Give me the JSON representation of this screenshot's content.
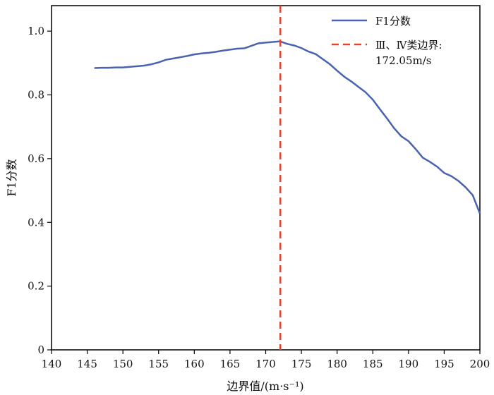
{
  "chart_data": {
    "type": "line",
    "xlabel": "边界值/(m·s⁻¹)",
    "ylabel": "F1分数",
    "xlim": [
      140,
      200
    ],
    "ylim": [
      0,
      1.08
    ],
    "xticks": [
      140,
      145,
      150,
      155,
      160,
      165,
      170,
      175,
      180,
      185,
      190,
      195,
      200
    ],
    "yticks": [
      0,
      0.2,
      0.4,
      0.6,
      0.8,
      1.0
    ],
    "xtick_labels": [
      "140",
      "145",
      "150",
      "155",
      "160",
      "165",
      "170",
      "175",
      "180",
      "185",
      "190",
      "195",
      "200"
    ],
    "ytick_labels": [
      "0",
      "0.2",
      "0.4",
      "0.6",
      "0.8",
      "1.0"
    ],
    "grid": false,
    "legend_position": "top-right",
    "series": [
      {
        "name": "F1分数",
        "color": "#4a63b0",
        "x": [
          146,
          147,
          148,
          149,
          150,
          151,
          152,
          153,
          154,
          155,
          156,
          157,
          158,
          159,
          160,
          161,
          162,
          163,
          164,
          165,
          166,
          167,
          168,
          169,
          170,
          171,
          172,
          173,
          174,
          175,
          176,
          177,
          178,
          179,
          180,
          181,
          182,
          183,
          184,
          185,
          186,
          187,
          188,
          189,
          190,
          191,
          192,
          193,
          194,
          195,
          196,
          197,
          198,
          199,
          200
        ],
        "y": [
          0.884,
          0.885,
          0.885,
          0.886,
          0.886,
          0.888,
          0.89,
          0.892,
          0.896,
          0.902,
          0.91,
          0.914,
          0.918,
          0.922,
          0.927,
          0.93,
          0.932,
          0.935,
          0.939,
          0.942,
          0.945,
          0.946,
          0.954,
          0.962,
          0.964,
          0.966,
          0.968,
          0.96,
          0.955,
          0.947,
          0.936,
          0.928,
          0.912,
          0.896,
          0.876,
          0.857,
          0.842,
          0.825,
          0.808,
          0.785,
          0.755,
          0.726,
          0.695,
          0.67,
          0.655,
          0.63,
          0.603,
          0.59,
          0.575,
          0.555,
          0.545,
          0.53,
          0.51,
          0.485,
          0.428
        ]
      }
    ],
    "reference_line": {
      "name": "Ⅲ、Ⅳ类边界: 172.05m/s",
      "legend_lines": [
        "Ⅲ、Ⅳ类边界:",
        "172.05m/s"
      ],
      "x": 172.05,
      "color": "#e0462d",
      "style": "dashed"
    }
  }
}
